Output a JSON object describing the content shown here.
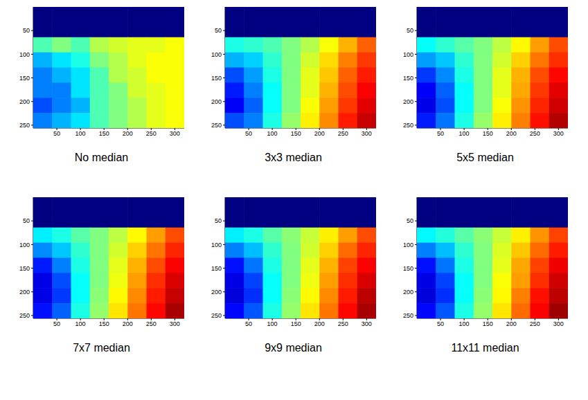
{
  "chart_data": [
    {
      "type": "heatmap",
      "title": "No median",
      "xlim": [
        0,
        320
      ],
      "ylim": [
        0,
        256
      ],
      "xticks": [
        50,
        100,
        150,
        200,
        250,
        300
      ],
      "yticks": [
        50,
        100,
        150,
        200,
        250
      ],
      "zlim": [
        0,
        1
      ],
      "x": [
        20,
        60,
        100,
        140,
        180,
        220,
        260,
        300
      ],
      "y": [
        16,
        48,
        80,
        112,
        144,
        176,
        208,
        240
      ],
      "cells": [
        [
          0,
          0,
          0,
          0,
          0,
          0,
          0,
          0
        ],
        [
          0,
          0,
          0,
          0,
          0,
          0,
          0,
          0
        ],
        [
          0.45,
          0.5,
          0.45,
          0.55,
          0.58,
          0.6,
          0.6,
          0.62
        ],
        [
          0.3,
          0.35,
          0.4,
          0.5,
          0.55,
          0.6,
          0.62,
          0.62
        ],
        [
          0.25,
          0.3,
          0.35,
          0.45,
          0.55,
          0.58,
          0.62,
          0.62
        ],
        [
          0.25,
          0.25,
          0.35,
          0.45,
          0.5,
          0.58,
          0.6,
          0.62
        ],
        [
          0.2,
          0.25,
          0.3,
          0.45,
          0.5,
          0.55,
          0.6,
          0.62
        ],
        [
          0.25,
          0.3,
          0.35,
          0.45,
          0.5,
          0.55,
          0.6,
          0.62
        ]
      ]
    },
    {
      "type": "heatmap",
      "title": "3x3 median",
      "xlim": [
        0,
        320
      ],
      "ylim": [
        0,
        256
      ],
      "xticks": [
        50,
        100,
        150,
        200,
        250,
        300
      ],
      "yticks": [
        50,
        100,
        150,
        200,
        250
      ],
      "zlim": [
        0,
        1
      ],
      "x": [
        20,
        60,
        100,
        140,
        180,
        220,
        260,
        300
      ],
      "y": [
        16,
        48,
        80,
        112,
        144,
        176,
        208,
        240
      ],
      "cells": [
        [
          0,
          0,
          0,
          0,
          0,
          0,
          0,
          0
        ],
        [
          0,
          0,
          0,
          0,
          0,
          0,
          0,
          0
        ],
        [
          0.4,
          0.42,
          0.45,
          0.5,
          0.55,
          0.62,
          0.7,
          0.78
        ],
        [
          0.3,
          0.33,
          0.42,
          0.5,
          0.58,
          0.66,
          0.75,
          0.82
        ],
        [
          0.2,
          0.28,
          0.4,
          0.5,
          0.6,
          0.68,
          0.78,
          0.85
        ],
        [
          0.15,
          0.25,
          0.38,
          0.5,
          0.6,
          0.7,
          0.8,
          0.88
        ],
        [
          0.12,
          0.22,
          0.38,
          0.5,
          0.62,
          0.72,
          0.82,
          0.9
        ],
        [
          0.2,
          0.25,
          0.4,
          0.52,
          0.64,
          0.74,
          0.85,
          0.93
        ]
      ]
    },
    {
      "type": "heatmap",
      "title": "5x5 median",
      "xlim": [
        0,
        320
      ],
      "ylim": [
        0,
        256
      ],
      "xticks": [
        50,
        100,
        150,
        200,
        250,
        300
      ],
      "yticks": [
        50,
        100,
        150,
        200,
        250
      ],
      "zlim": [
        0,
        1
      ],
      "x": [
        20,
        60,
        100,
        140,
        180,
        220,
        260,
        300
      ],
      "y": [
        16,
        48,
        80,
        112,
        144,
        176,
        208,
        240
      ],
      "cells": [
        [
          0,
          0,
          0,
          0,
          0,
          0,
          0,
          0
        ],
        [
          0,
          0,
          0,
          0,
          0,
          0,
          0,
          0
        ],
        [
          0.38,
          0.42,
          0.46,
          0.5,
          0.56,
          0.63,
          0.72,
          0.8
        ],
        [
          0.28,
          0.32,
          0.42,
          0.5,
          0.58,
          0.67,
          0.76,
          0.83
        ],
        [
          0.18,
          0.26,
          0.4,
          0.5,
          0.6,
          0.7,
          0.8,
          0.87
        ],
        [
          0.12,
          0.22,
          0.38,
          0.5,
          0.6,
          0.71,
          0.82,
          0.9
        ],
        [
          0.1,
          0.2,
          0.38,
          0.5,
          0.62,
          0.73,
          0.84,
          0.92
        ],
        [
          0.15,
          0.24,
          0.4,
          0.52,
          0.64,
          0.75,
          0.86,
          0.95
        ]
      ]
    },
    {
      "type": "heatmap",
      "title": "7x7 median",
      "xlim": [
        0,
        320
      ],
      "ylim": [
        0,
        256
      ],
      "xticks": [
        50,
        100,
        150,
        200,
        250,
        300
      ],
      "yticks": [
        50,
        100,
        150,
        200,
        250
      ],
      "zlim": [
        0,
        1
      ],
      "x": [
        20,
        60,
        100,
        140,
        180,
        220,
        260,
        300
      ],
      "y": [
        16,
        48,
        80,
        112,
        144,
        176,
        208,
        240
      ],
      "cells": [
        [
          0,
          0,
          0,
          0,
          0,
          0,
          0,
          0
        ],
        [
          0,
          0,
          0,
          0,
          0,
          0,
          0,
          0
        ],
        [
          0.36,
          0.4,
          0.46,
          0.5,
          0.56,
          0.63,
          0.72,
          0.8
        ],
        [
          0.26,
          0.32,
          0.42,
          0.5,
          0.58,
          0.67,
          0.76,
          0.84
        ],
        [
          0.15,
          0.25,
          0.4,
          0.5,
          0.6,
          0.7,
          0.8,
          0.88
        ],
        [
          0.1,
          0.2,
          0.38,
          0.5,
          0.61,
          0.72,
          0.83,
          0.91
        ],
        [
          0.1,
          0.18,
          0.38,
          0.51,
          0.63,
          0.74,
          0.85,
          0.93
        ],
        [
          0.14,
          0.22,
          0.4,
          0.52,
          0.65,
          0.76,
          0.87,
          0.96
        ]
      ]
    },
    {
      "type": "heatmap",
      "title": "9x9 median",
      "xlim": [
        0,
        320
      ],
      "ylim": [
        0,
        256
      ],
      "xticks": [
        50,
        100,
        150,
        200,
        250,
        300
      ],
      "yticks": [
        50,
        100,
        150,
        200,
        250
      ],
      "zlim": [
        0,
        1
      ],
      "x": [
        20,
        60,
        100,
        140,
        180,
        220,
        260,
        300
      ],
      "y": [
        16,
        48,
        80,
        112,
        144,
        176,
        208,
        240
      ],
      "cells": [
        [
          0,
          0,
          0,
          0,
          0,
          0,
          0,
          0
        ],
        [
          0,
          0,
          0,
          0,
          0,
          0,
          0,
          0
        ],
        [
          0.36,
          0.4,
          0.46,
          0.51,
          0.57,
          0.64,
          0.72,
          0.8
        ],
        [
          0.25,
          0.31,
          0.42,
          0.5,
          0.58,
          0.67,
          0.77,
          0.84
        ],
        [
          0.14,
          0.24,
          0.4,
          0.5,
          0.6,
          0.7,
          0.81,
          0.88
        ],
        [
          0.1,
          0.19,
          0.38,
          0.5,
          0.61,
          0.72,
          0.83,
          0.91
        ],
        [
          0.09,
          0.17,
          0.38,
          0.51,
          0.63,
          0.74,
          0.85,
          0.94
        ],
        [
          0.13,
          0.21,
          0.4,
          0.52,
          0.65,
          0.76,
          0.87,
          0.96
        ]
      ]
    },
    {
      "type": "heatmap",
      "title": "11x11 median",
      "xlim": [
        0,
        320
      ],
      "ylim": [
        0,
        256
      ],
      "xticks": [
        50,
        100,
        150,
        200,
        250,
        300
      ],
      "yticks": [
        50,
        100,
        150,
        200,
        250
      ],
      "zlim": [
        0,
        1
      ],
      "x": [
        20,
        60,
        100,
        140,
        180,
        220,
        260,
        300
      ],
      "y": [
        16,
        48,
        80,
        112,
        144,
        176,
        208,
        240
      ],
      "cells": [
        [
          0,
          0,
          0,
          0,
          0,
          0,
          0,
          0
        ],
        [
          0,
          0,
          0,
          0,
          0,
          0,
          0,
          0
        ],
        [
          0.37,
          0.41,
          0.46,
          0.51,
          0.57,
          0.64,
          0.73,
          0.81
        ],
        [
          0.25,
          0.31,
          0.42,
          0.5,
          0.59,
          0.68,
          0.77,
          0.85
        ],
        [
          0.14,
          0.24,
          0.4,
          0.5,
          0.6,
          0.71,
          0.81,
          0.89
        ],
        [
          0.1,
          0.19,
          0.38,
          0.5,
          0.62,
          0.72,
          0.83,
          0.92
        ],
        [
          0.09,
          0.17,
          0.38,
          0.51,
          0.63,
          0.75,
          0.86,
          0.94
        ],
        [
          0.13,
          0.21,
          0.4,
          0.52,
          0.65,
          0.77,
          0.88,
          0.97
        ]
      ]
    }
  ]
}
